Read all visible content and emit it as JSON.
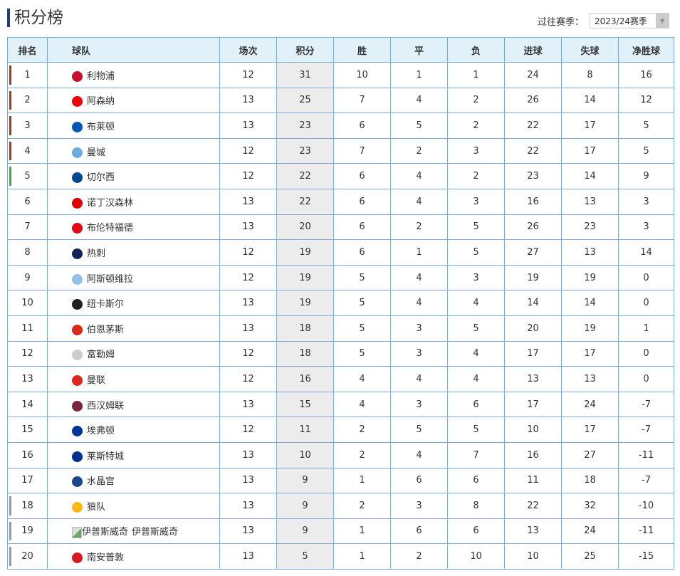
{
  "title": "积分榜",
  "season": {
    "label": "过往赛季：",
    "selected": "2023/24赛季"
  },
  "columns": [
    "排名",
    "球队",
    "场次",
    "积分",
    "胜",
    "平",
    "负",
    "进球",
    "失球",
    "净胜球"
  ],
  "zone_colors": {
    "champions_league": "#b0360a",
    "europa_league": "#3caa3c",
    "relegation": "#999999"
  },
  "rows": [
    {
      "rank": "1",
      "team": "利物浦",
      "played": "12",
      "points": "31",
      "w": "10",
      "d": "1",
      "l": "1",
      "gf": "24",
      "ga": "8",
      "gd": "16",
      "zone": "champions_league",
      "crest": "#c8102e"
    },
    {
      "rank": "2",
      "team": "阿森纳",
      "played": "13",
      "points": "25",
      "w": "7",
      "d": "4",
      "l": "2",
      "gf": "26",
      "ga": "14",
      "gd": "12",
      "zone": "champions_league",
      "crest": "#ef0107"
    },
    {
      "rank": "3",
      "team": "布莱顿",
      "played": "13",
      "points": "23",
      "w": "6",
      "d": "5",
      "l": "2",
      "gf": "22",
      "ga": "17",
      "gd": "5",
      "zone": "champions_league",
      "crest": "#0057b8"
    },
    {
      "rank": "4",
      "team": "曼城",
      "played": "12",
      "points": "23",
      "w": "7",
      "d": "2",
      "l": "3",
      "gf": "22",
      "ga": "17",
      "gd": "5",
      "zone": "champions_league",
      "crest": "#6cabdd"
    },
    {
      "rank": "5",
      "team": "切尔西",
      "played": "12",
      "points": "22",
      "w": "6",
      "d": "4",
      "l": "2",
      "gf": "23",
      "ga": "14",
      "gd": "9",
      "zone": "europa_league",
      "crest": "#034694"
    },
    {
      "rank": "6",
      "team": "诺丁汉森林",
      "played": "13",
      "points": "22",
      "w": "6",
      "d": "4",
      "l": "3",
      "gf": "16",
      "ga": "13",
      "gd": "3",
      "zone": "",
      "crest": "#dd0000"
    },
    {
      "rank": "7",
      "team": "布伦特福德",
      "played": "13",
      "points": "20",
      "w": "6",
      "d": "2",
      "l": "5",
      "gf": "26",
      "ga": "23",
      "gd": "3",
      "zone": "",
      "crest": "#e30613"
    },
    {
      "rank": "8",
      "team": "热刺",
      "played": "12",
      "points": "19",
      "w": "6",
      "d": "1",
      "l": "5",
      "gf": "27",
      "ga": "13",
      "gd": "14",
      "zone": "",
      "crest": "#132257"
    },
    {
      "rank": "9",
      "team": "阿斯顿维拉",
      "played": "12",
      "points": "19",
      "w": "5",
      "d": "4",
      "l": "3",
      "gf": "19",
      "ga": "19",
      "gd": "0",
      "zone": "",
      "crest": "#95bfe5"
    },
    {
      "rank": "10",
      "team": "纽卡斯尔",
      "played": "13",
      "points": "19",
      "w": "5",
      "d": "4",
      "l": "4",
      "gf": "14",
      "ga": "14",
      "gd": "0",
      "zone": "",
      "crest": "#241f20"
    },
    {
      "rank": "11",
      "team": "伯恩茅斯",
      "played": "13",
      "points": "18",
      "w": "5",
      "d": "3",
      "l": "5",
      "gf": "20",
      "ga": "19",
      "gd": "1",
      "zone": "",
      "crest": "#da291c"
    },
    {
      "rank": "12",
      "team": "富勒姆",
      "played": "12",
      "points": "18",
      "w": "5",
      "d": "3",
      "l": "4",
      "gf": "17",
      "ga": "17",
      "gd": "0",
      "zone": "",
      "crest": "#cccccc"
    },
    {
      "rank": "13",
      "team": "曼联",
      "played": "12",
      "points": "16",
      "w": "4",
      "d": "4",
      "l": "4",
      "gf": "13",
      "ga": "13",
      "gd": "0",
      "zone": "",
      "crest": "#da291c"
    },
    {
      "rank": "14",
      "team": "西汉姆联",
      "played": "13",
      "points": "15",
      "w": "4",
      "d": "3",
      "l": "6",
      "gf": "17",
      "ga": "24",
      "gd": "-7",
      "zone": "",
      "crest": "#7a263a"
    },
    {
      "rank": "15",
      "team": "埃弗顿",
      "played": "12",
      "points": "11",
      "w": "2",
      "d": "5",
      "l": "5",
      "gf": "10",
      "ga": "17",
      "gd": "-7",
      "zone": "",
      "crest": "#003399"
    },
    {
      "rank": "16",
      "team": "莱斯特城",
      "played": "13",
      "points": "10",
      "w": "2",
      "d": "4",
      "l": "7",
      "gf": "16",
      "ga": "27",
      "gd": "-11",
      "zone": "",
      "crest": "#003090"
    },
    {
      "rank": "17",
      "team": "水晶宫",
      "played": "13",
      "points": "9",
      "w": "1",
      "d": "6",
      "l": "6",
      "gf": "11",
      "ga": "18",
      "gd": "-7",
      "zone": "",
      "crest": "#1b458f"
    },
    {
      "rank": "18",
      "team": "狼队",
      "played": "13",
      "points": "9",
      "w": "2",
      "d": "3",
      "l": "8",
      "gf": "22",
      "ga": "32",
      "gd": "-10",
      "zone": "relegation",
      "crest": "#fdb913"
    },
    {
      "rank": "19",
      "team": "伊普斯威奇",
      "alt": "伊普斯威奇",
      "played": "13",
      "points": "9",
      "w": "1",
      "d": "6",
      "l": "6",
      "gf": "13",
      "ga": "24",
      "gd": "-11",
      "zone": "relegation",
      "crest": ""
    },
    {
      "rank": "20",
      "team": "南安普敦",
      "played": "13",
      "points": "5",
      "w": "1",
      "d": "2",
      "l": "10",
      "gf": "10",
      "ga": "25",
      "gd": "-15",
      "zone": "relegation",
      "crest": "#d71920"
    }
  ]
}
